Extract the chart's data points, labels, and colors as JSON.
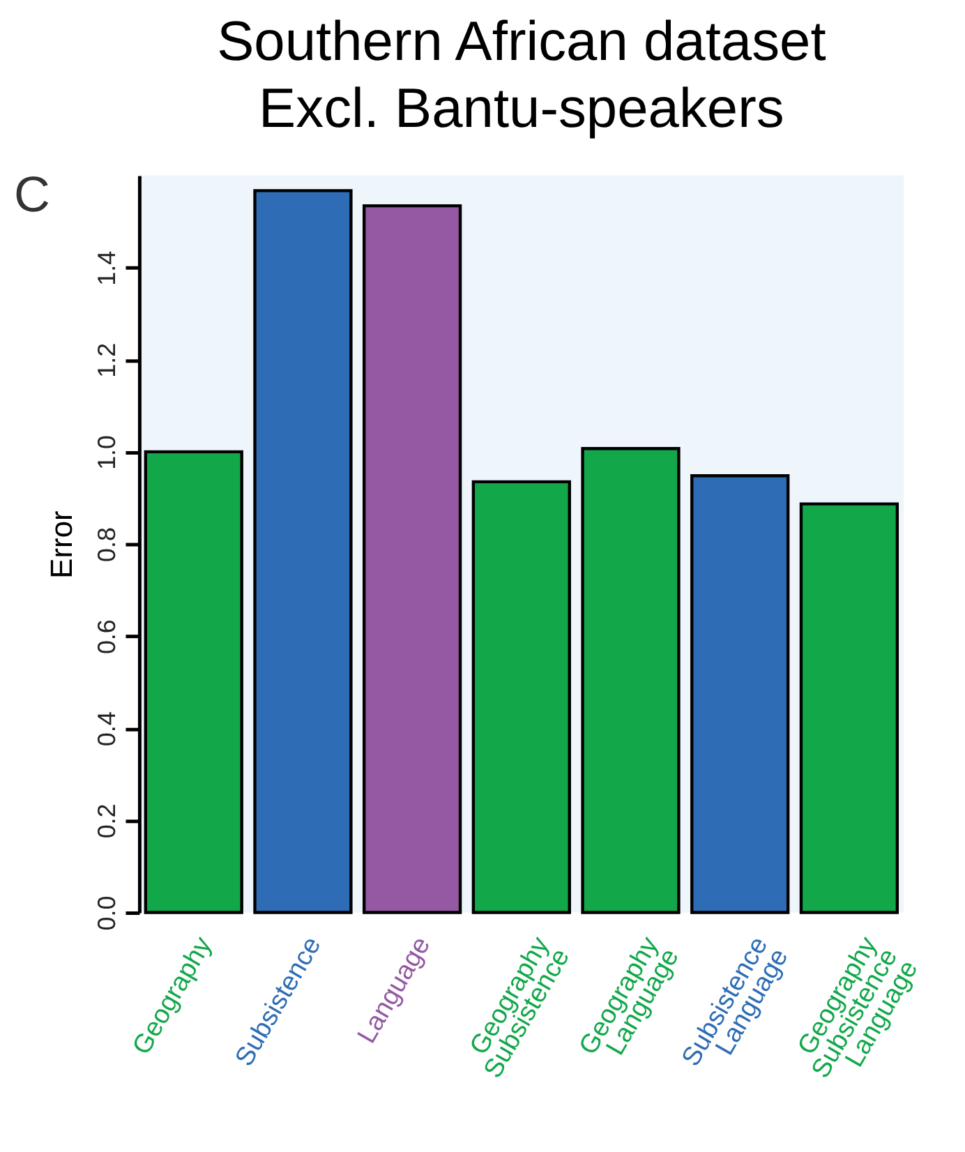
{
  "chart_data": {
    "type": "bar",
    "title": "Southern African dataset\nExcl. Bantu-speakers",
    "ylabel": "Error",
    "annotations": [
      "C"
    ],
    "categories": [
      "Geography",
      "Subsistence",
      "Language",
      "Geography\nSubsistence",
      "Geography\nLanguage",
      "Subsistence\nLanguage",
      "Geography\nSubsistence\nLanguage"
    ],
    "values": [
      1.0,
      1.567,
      1.534,
      0.935,
      1.007,
      0.948,
      0.887
    ],
    "colors": [
      "#12a84a",
      "#2e6db5",
      "#9558a3",
      "#12a84a",
      "#12a84a",
      "#2e6db5",
      "#12a84a"
    ],
    "ylim": [
      0,
      1.6
    ],
    "yticks": [
      {
        "value": 0,
        "label": "0.0"
      },
      {
        "value": 0.2,
        "label": "0.2"
      },
      {
        "value": 0.4,
        "label": "0.4"
      },
      {
        "value": 0.6,
        "label": "0.6"
      },
      {
        "value": 0.8,
        "label": "0.8"
      },
      {
        "value": 1.0,
        "label": "1.0"
      },
      {
        "value": 1.2,
        "label": "1.2"
      },
      {
        "value": 1.4,
        "label": "1.4"
      }
    ],
    "grid": false
  }
}
